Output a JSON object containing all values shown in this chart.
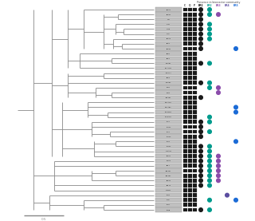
{
  "taxa_labels": [
    "BLAA1",
    "BLAB1",
    "CTB",
    "CTIM",
    "CTOE",
    "CTGI",
    "BLAA3",
    "BLA4",
    "BLAB4",
    "BLC2",
    "BLC1",
    "PSBA81",
    "BLA NT1",
    "BLC2 T",
    "BLC3",
    "PSBA82",
    "PSB2",
    "PSB3",
    "BLAC81",
    "LABLAD1",
    "LABLAB2",
    "SAPROB3",
    "LACOAB1",
    "LAC7",
    "LACO2",
    "LAC1",
    "LACO3",
    "LAC4",
    "LACO4",
    "CTMAG1",
    "BAFE1",
    "PSBA2",
    "BFT1",
    "BSTR91",
    "BSTR81",
    "BSTR4",
    "BLF75",
    "FVAB41",
    "APO1",
    "PODI",
    "APOA",
    "APOB"
  ],
  "presence": [
    [
      1,
      1,
      0,
      0,
      0
    ],
    [
      1,
      1,
      1,
      0,
      0
    ],
    [
      1,
      0,
      0,
      0,
      0
    ],
    [
      1,
      1,
      0,
      0,
      0
    ],
    [
      1,
      1,
      0,
      0,
      0
    ],
    [
      1,
      1,
      0,
      0,
      0
    ],
    [
      1,
      1,
      0,
      0,
      0
    ],
    [
      1,
      0,
      0,
      0,
      0
    ],
    [
      1,
      0,
      0,
      0,
      1
    ],
    [
      0,
      0,
      0,
      0,
      0
    ],
    [
      0,
      0,
      0,
      0,
      0
    ],
    [
      1,
      1,
      0,
      0,
      0
    ],
    [
      0,
      0,
      0,
      0,
      0
    ],
    [
      0,
      0,
      0,
      0,
      0
    ],
    [
      0,
      0,
      0,
      0,
      0
    ],
    [
      1,
      1,
      0,
      0,
      0
    ],
    [
      0,
      1,
      1,
      0,
      0
    ],
    [
      0,
      0,
      1,
      0,
      0
    ],
    [
      1,
      0,
      0,
      0,
      0
    ],
    [
      0,
      0,
      0,
      0,
      0
    ],
    [
      0,
      0,
      0,
      0,
      1
    ],
    [
      0,
      0,
      0,
      0,
      1
    ],
    [
      0,
      1,
      0,
      0,
      0
    ],
    [
      1,
      1,
      0,
      0,
      0
    ],
    [
      1,
      0,
      0,
      0,
      0
    ],
    [
      1,
      1,
      0,
      0,
      0
    ],
    [
      1,
      0,
      0,
      0,
      0
    ],
    [
      0,
      0,
      0,
      0,
      1
    ],
    [
      1,
      1,
      0,
      0,
      0
    ],
    [
      1,
      1,
      0,
      0,
      0
    ],
    [
      1,
      1,
      1,
      0,
      0
    ],
    [
      1,
      1,
      1,
      0,
      0
    ],
    [
      1,
      1,
      1,
      0,
      0
    ],
    [
      1,
      1,
      1,
      0,
      0
    ],
    [
      1,
      1,
      1,
      0,
      0
    ],
    [
      1,
      1,
      1,
      0,
      0
    ],
    [
      1,
      1,
      0,
      0,
      0
    ],
    [
      0,
      0,
      0,
      0,
      0
    ],
    [
      0,
      0,
      0,
      1,
      0
    ],
    [
      0,
      1,
      0,
      0,
      1
    ],
    [
      0,
      0,
      0,
      0,
      0
    ],
    [
      1,
      1,
      0,
      0,
      0
    ]
  ],
  "dot_colors": [
    "#1a1a1a",
    "#009B8D",
    "#8B4CAB",
    "#5B4DA0",
    "#1B6BD6"
  ],
  "bg_color": "#ffffff",
  "tree_color": "#888888",
  "label_bg": "#BBBBBB",
  "label_fg": "#111111",
  "col_headers": [
    "BR1",
    "BR2",
    "BR3",
    "BR4",
    "BR5"
  ],
  "col_header_colors": [
    "#000000",
    "#009B8D",
    "#8B4CAB",
    "#5B4DA0",
    "#1B6BD6"
  ],
  "scale_label": "0.5"
}
